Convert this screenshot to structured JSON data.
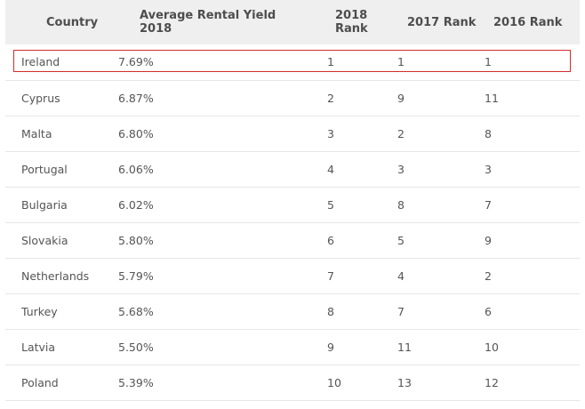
{
  "table": {
    "headers": {
      "country": "Country",
      "yield": "Average Rental Yield 2018",
      "rank2018": "2018 Rank",
      "rank2017": "2017 Rank",
      "rank2016": "2016 Rank"
    },
    "rows": [
      {
        "country": "Ireland",
        "yield": "7.69%",
        "rank2018": "1",
        "rank2017": "1",
        "rank2016": "1"
      },
      {
        "country": "Cyprus",
        "yield": "6.87%",
        "rank2018": "2",
        "rank2017": "9",
        "rank2016": "11"
      },
      {
        "country": "Malta",
        "yield": "6.80%",
        "rank2018": "3",
        "rank2017": "2",
        "rank2016": "8"
      },
      {
        "country": "Portugal",
        "yield": "6.06%",
        "rank2018": "4",
        "rank2017": "3",
        "rank2016": "3"
      },
      {
        "country": "Bulgaria",
        "yield": "6.02%",
        "rank2018": "5",
        "rank2017": "8",
        "rank2016": "7"
      },
      {
        "country": "Slovakia",
        "yield": "5.80%",
        "rank2018": "6",
        "rank2017": "5",
        "rank2016": "9"
      },
      {
        "country": "Netherlands",
        "yield": "5.79%",
        "rank2018": "7",
        "rank2017": "4",
        "rank2016": "2"
      },
      {
        "country": "Turkey",
        "yield": "5.68%",
        "rank2018": "8",
        "rank2017": "7",
        "rank2016": "6"
      },
      {
        "country": "Latvia",
        "yield": "5.50%",
        "rank2018": "9",
        "rank2017": "11",
        "rank2016": "10"
      },
      {
        "country": "Poland",
        "yield": "5.39%",
        "rank2018": "10",
        "rank2017": "13",
        "rank2016": "12"
      }
    ]
  },
  "highlight": {
    "row_index": 0,
    "color": "#d62b2b"
  }
}
